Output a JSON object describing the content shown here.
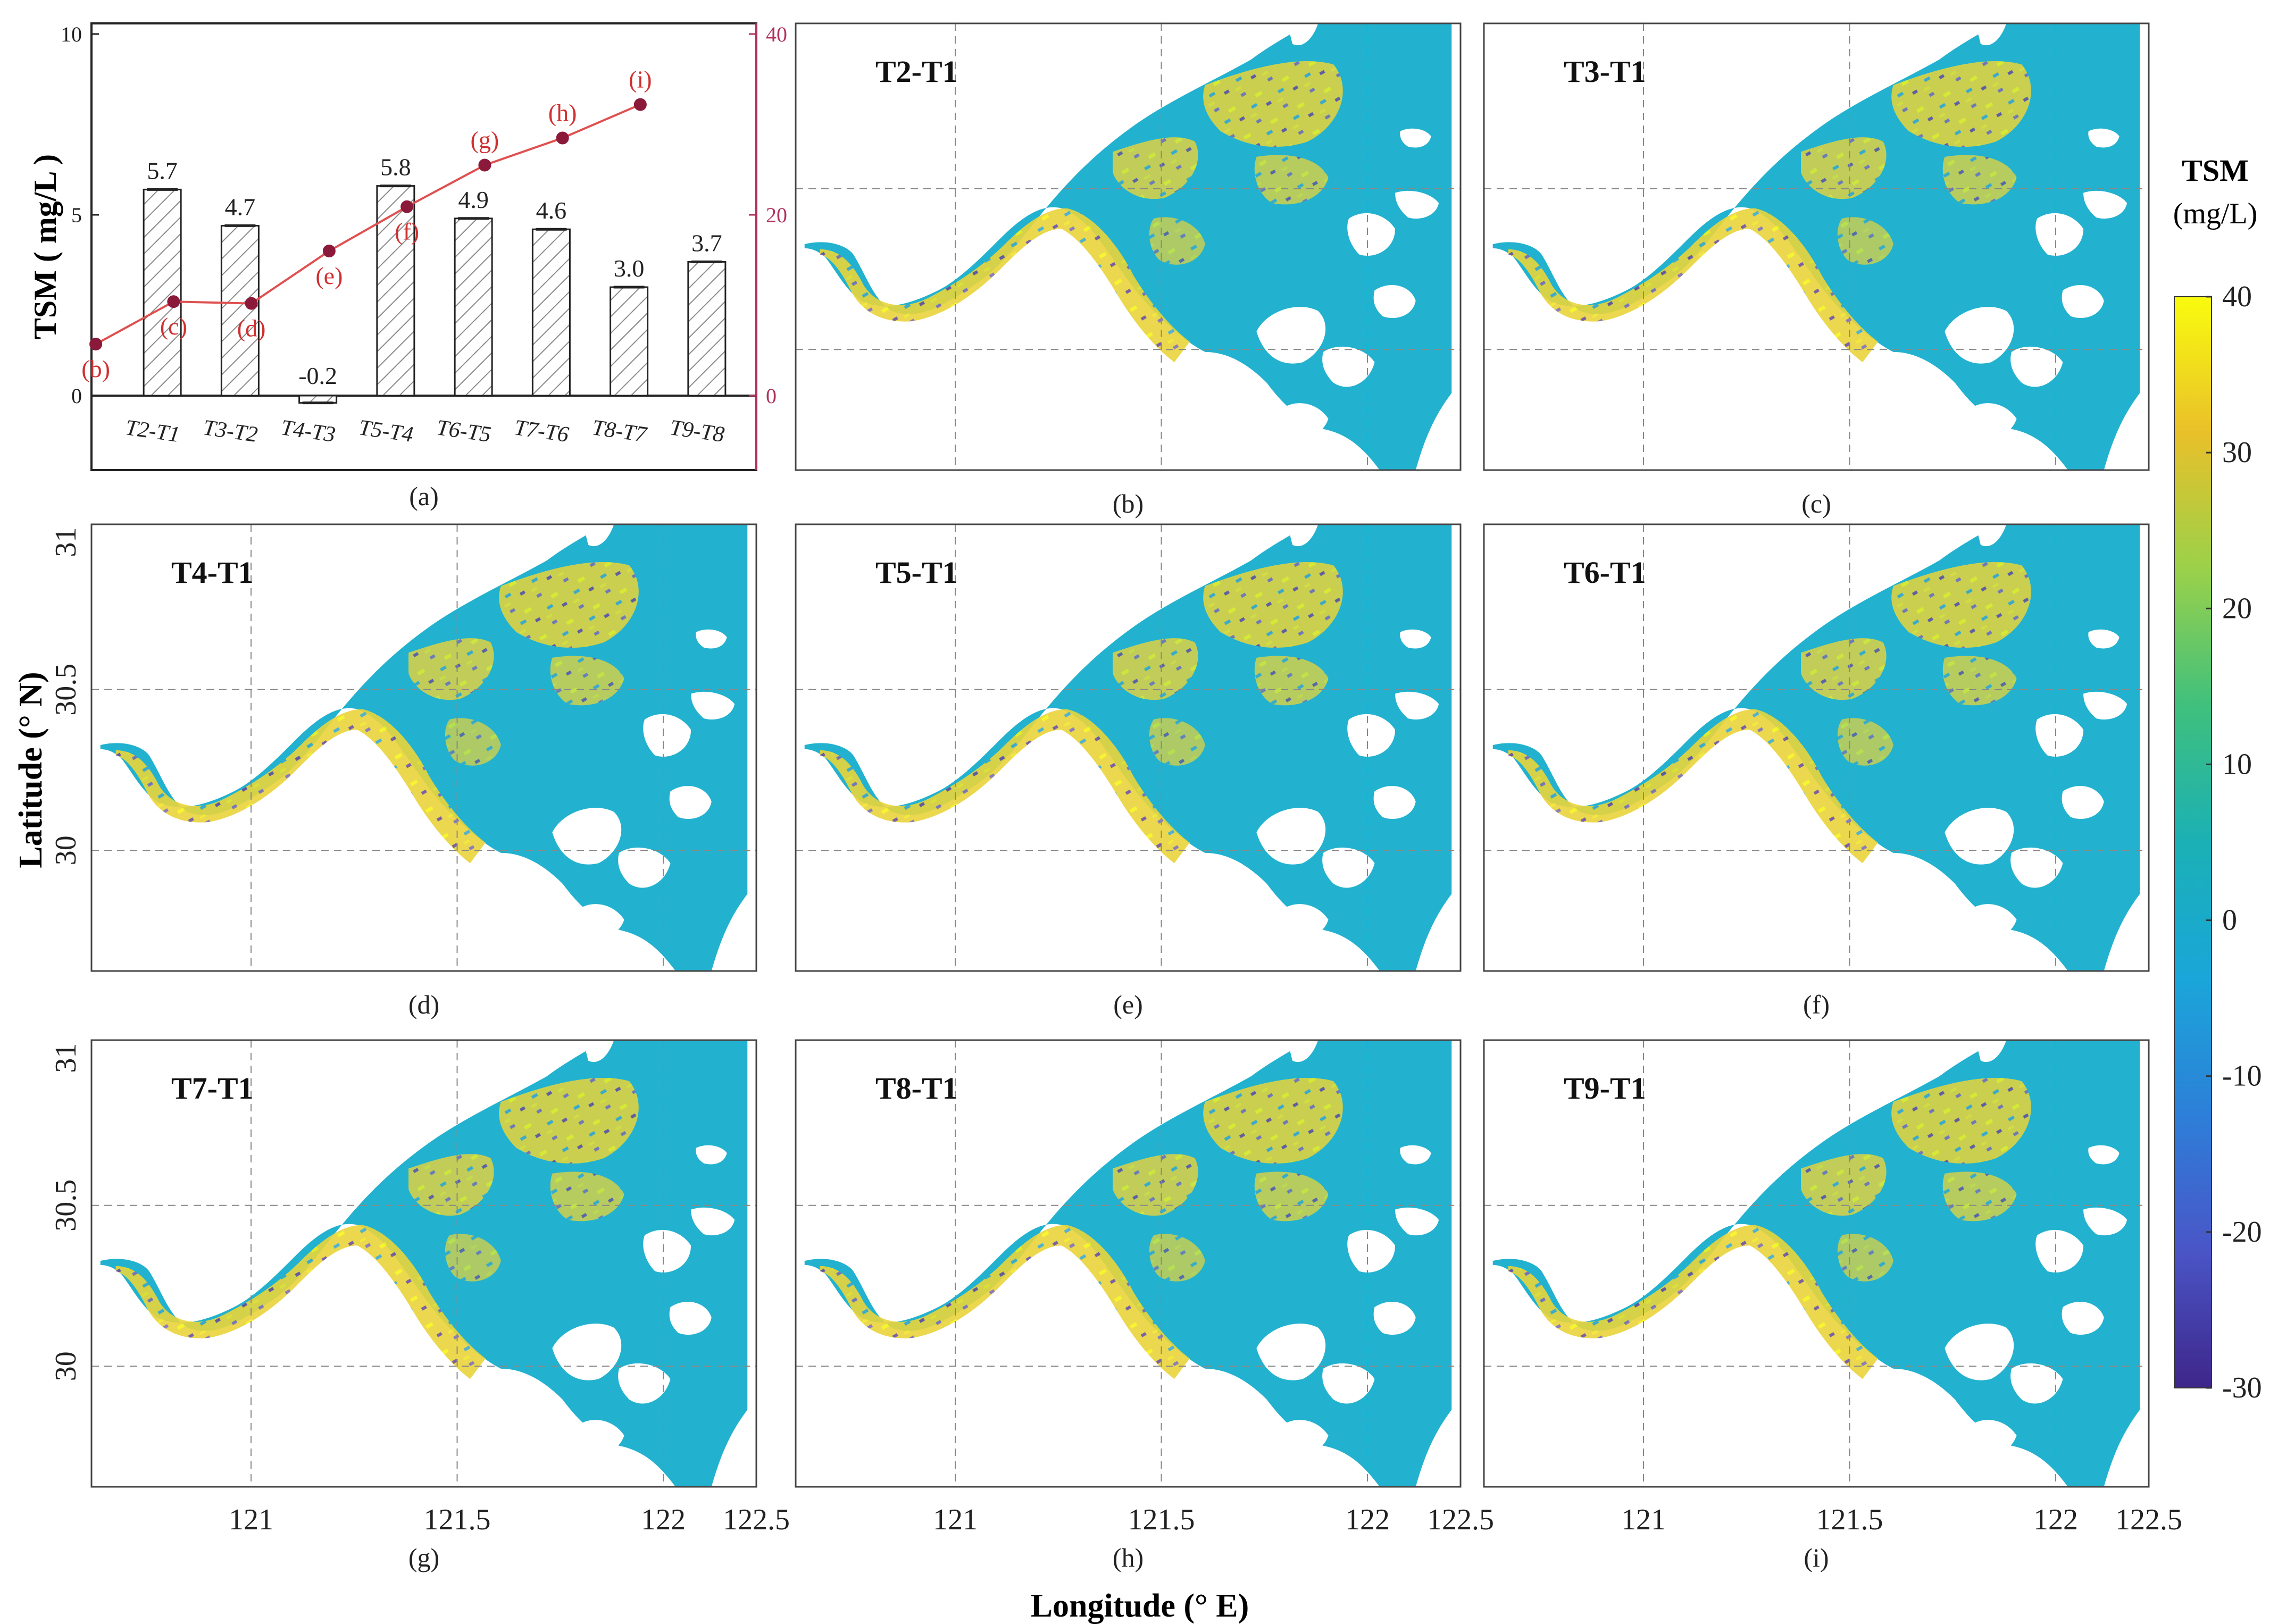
{
  "chart_data": [
    {
      "type": "bar",
      "panel": "(a)",
      "ylabel": "TSM ( mg/L )",
      "categories": [
        "T2-T1",
        "T3-T2",
        "T4-T3",
        "T5-T4",
        "T6-T5",
        "T7-T6",
        "T8-T7",
        "T9-T8"
      ],
      "values": [
        5.7,
        4.7,
        -0.2,
        5.8,
        4.9,
        4.6,
        3.0,
        3.7
      ],
      "value_labels": [
        "5.7",
        "4.7",
        "-0.2",
        "5.8",
        "4.9",
        "4.6",
        "3.0",
        "3.7"
      ],
      "ylim": [
        0,
        10
      ],
      "yticks": [
        "0",
        "5",
        "10"
      ],
      "right_axis": {
        "ylim": [
          0,
          40
        ],
        "yticks": [
          "0",
          "20",
          "40"
        ],
        "color": "#b0305a"
      },
      "line_series": {
        "values": [
          5.7,
          10.4,
          10.2,
          16.0,
          20.9,
          25.5,
          28.5,
          32.2
        ],
        "labels": [
          "(b)",
          "(c)",
          "(d)",
          "(e)",
          "(f)",
          "(g)",
          "(h)",
          "(i)"
        ],
        "color": "#e05050",
        "marker_color": "#8b1a3a"
      }
    },
    {
      "type": "heatmap",
      "panels": [
        {
          "id": "(b)",
          "title": "T2-T1"
        },
        {
          "id": "(c)",
          "title": "T3-T1"
        },
        {
          "id": "(d)",
          "title": "T4-T1"
        },
        {
          "id": "(e)",
          "title": "T5-T1"
        },
        {
          "id": "(f)",
          "title": "T6-T1"
        },
        {
          "id": "(g)",
          "title": "T7-T1"
        },
        {
          "id": "(h)",
          "title": "T8-T1"
        },
        {
          "id": "(i)",
          "title": "T9-T1"
        }
      ],
      "xlabel": "Longitude (° E)",
      "ylabel": "Latitude (° N)",
      "xticks": [
        "121",
        "121.5",
        "122",
        "122.5"
      ],
      "yticks": [
        "31",
        "30.5",
        "30"
      ],
      "colorbar": {
        "title": "TSM",
        "unit": "(mg/L)",
        "range": [
          -30,
          40
        ],
        "ticks": [
          "40",
          "30",
          "20",
          "10",
          "0",
          "-10",
          "-20",
          "-30"
        ],
        "colors": [
          "#f9fb0e",
          "#e9c02a",
          "#9ad14a",
          "#3fc07d",
          "#1bb0b5",
          "#1aa6d9",
          "#2d7fd8",
          "#4a55c6",
          "#3e268a"
        ]
      }
    }
  ]
}
